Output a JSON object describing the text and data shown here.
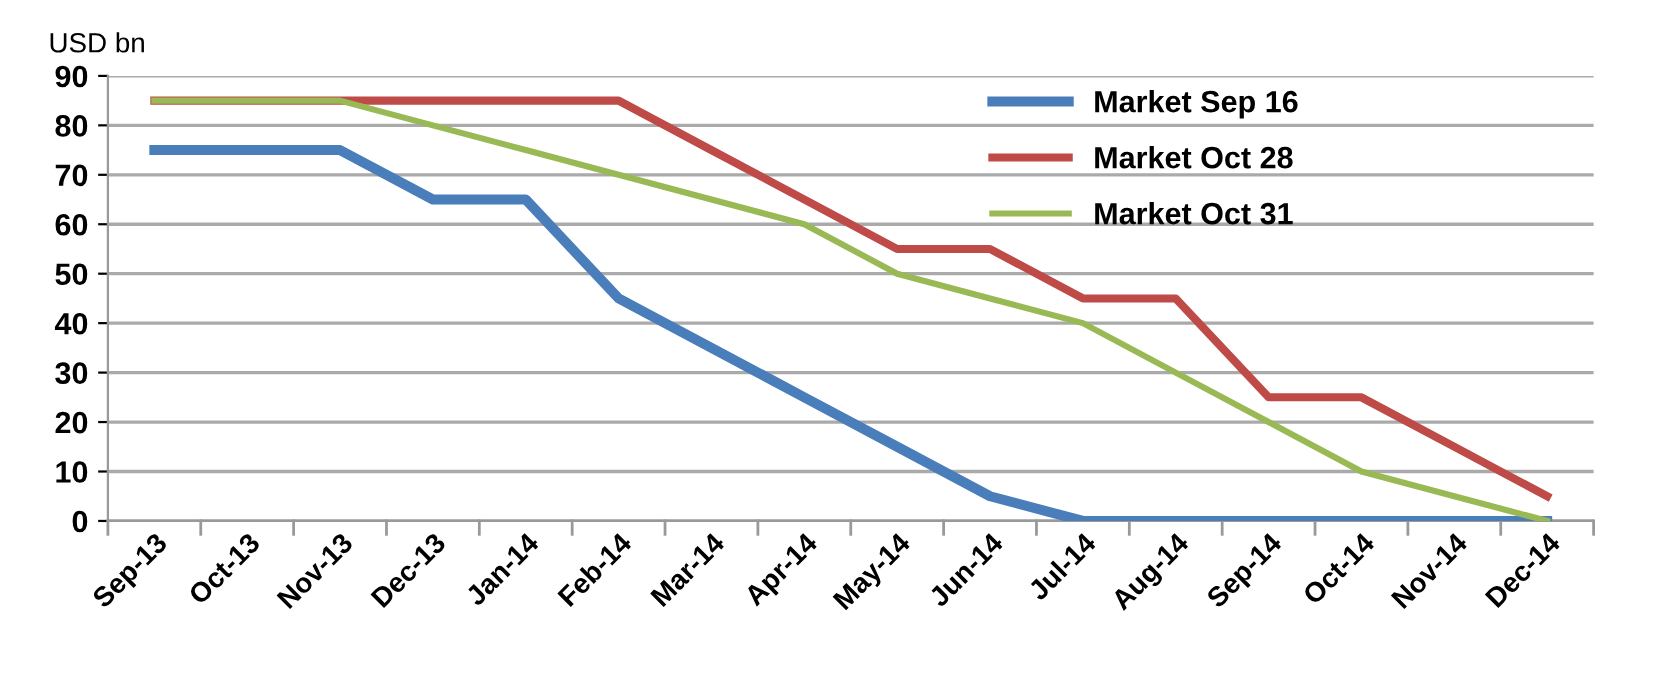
{
  "chart_data": {
    "type": "line",
    "ylabel": "USD bn",
    "categories": [
      "Sep-13",
      "Oct-13",
      "Nov-13",
      "Dec-13",
      "Jan-14",
      "Feb-14",
      "Mar-14",
      "Apr-14",
      "May-14",
      "Jun-14",
      "Jul-14",
      "Aug-14",
      "Sep-14",
      "Oct-14",
      "Nov-14",
      "Dec-14"
    ],
    "series": [
      {
        "name": "Market Sep 16",
        "color": "#4a7ebb",
        "values": [
          75,
          75,
          75,
          65,
          65,
          45,
          35,
          25,
          15,
          5,
          0,
          0,
          0,
          0,
          0,
          0
        ]
      },
      {
        "name": "Market Oct 28",
        "color": "#be4b48",
        "values": [
          85,
          85,
          85,
          85,
          85,
          85,
          75,
          65,
          55,
          55,
          45,
          45,
          25,
          25,
          15,
          5
        ]
      },
      {
        "name": "Market Oct 31",
        "color": "#98b954",
        "values": [
          85,
          85,
          85,
          80,
          75,
          70,
          65,
          60,
          50,
          45,
          40,
          30,
          20,
          10,
          5,
          0
        ]
      }
    ],
    "ylim": [
      0,
      90
    ],
    "yticks": [
      0,
      10,
      20,
      30,
      40,
      50,
      60,
      70,
      80,
      90
    ],
    "grid": "y",
    "legend": "top right",
    "marker": "none",
    "line_style": "solid"
  }
}
